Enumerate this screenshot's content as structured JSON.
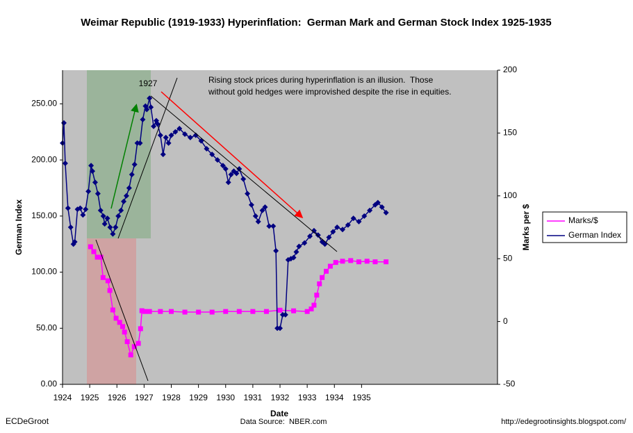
{
  "chart_data": {
    "type": "line",
    "title": "Weimar Republic (1919-1933) Hyperinflation:  German Mark and German Stock Index 1925-1935",
    "x_label": "Date",
    "y_label": "German Index",
    "y2_label": "Marks per $",
    "annotations": [
      "1927",
      "Rising stock prices during hyperinflation is an illusion.  Those",
      "without gold hedges were improvished despite the rise in equities."
    ],
    "footer": [
      "ECDeGroot",
      "Data Source:  NBER.com",
      "http://edegrootinsights.blogspot.com/"
    ],
    "xlim": [
      1924,
      1940
    ],
    "xticks": [
      1924,
      1925,
      1926,
      1927,
      1928,
      1929,
      1930,
      1931,
      1932,
      1933,
      1934,
      1935
    ],
    "ylim": [
      0,
      280
    ],
    "yticks": [
      {
        "value": 0,
        "label": "0.00"
      },
      {
        "value": 50,
        "label": "50.00"
      },
      {
        "value": 100,
        "label": "100.00"
      },
      {
        "value": 150,
        "label": "150.00"
      },
      {
        "value": 200,
        "label": "200.00"
      },
      {
        "value": 250,
        "label": "250.00"
      }
    ],
    "y2lim": [
      -50,
      200
    ],
    "y2ticks": [
      -50,
      0,
      50,
      100,
      150,
      200
    ],
    "legend": "right",
    "background": "#c0c0c0",
    "series": [
      {
        "name": "Marks/$",
        "color": "#ff00ff",
        "axis": "y2",
        "x": [
          1925.03,
          1925.15,
          1925.28,
          1925.41,
          1925.49,
          1925.67,
          1925.74,
          1925.85,
          1925.97,
          1926.1,
          1926.21,
          1926.28,
          1926.38,
          1926.51,
          1926.64,
          1926.79,
          1926.87,
          1926.92,
          1927.03,
          1927.2,
          1927.6,
          1928.0,
          1928.5,
          1929.0,
          1929.5,
          1930.0,
          1930.5,
          1931.0,
          1931.5,
          1932.0,
          1932.5,
          1933.0,
          1933.15,
          1933.25,
          1933.35,
          1933.45,
          1933.55,
          1933.7,
          1933.85,
          1934.05,
          1934.3,
          1934.6,
          1934.9,
          1935.2,
          1935.5,
          1935.9
        ],
        "values": [
          59.5,
          55.6,
          51.2,
          51.2,
          35,
          32.4,
          24.7,
          9.2,
          2.6,
          -0.7,
          -4,
          -8.4,
          -16,
          -26.6,
          -20,
          -17.4,
          -5.7,
          8.6,
          8,
          8,
          8,
          8,
          7.5,
          7.5,
          7.5,
          8,
          8,
          8,
          8,
          9,
          8.5,
          8,
          10,
          13,
          21,
          30,
          35,
          40,
          44,
          47,
          48,
          48.5,
          47.5,
          48,
          47.5,
          47.5
        ]
      },
      {
        "name": "German Index",
        "color": "#000080",
        "axis": "y",
        "x": [
          1924.0,
          1924.05,
          1924.1,
          1924.2,
          1924.3,
          1924.4,
          1924.45,
          1924.55,
          1924.65,
          1924.75,
          1924.85,
          1924.95,
          1925.05,
          1925.1,
          1925.2,
          1925.3,
          1925.4,
          1925.5,
          1925.55,
          1925.65,
          1925.75,
          1925.85,
          1925.95,
          1926.05,
          1926.15,
          1926.25,
          1926.35,
          1926.45,
          1926.55,
          1926.65,
          1926.75,
          1926.85,
          1926.95,
          1927.05,
          1927.1,
          1927.2,
          1927.25,
          1927.35,
          1927.45,
          1927.5,
          1927.6,
          1927.7,
          1927.8,
          1927.9,
          1928.0,
          1928.15,
          1928.3,
          1928.5,
          1928.7,
          1928.9,
          1929.1,
          1929.3,
          1929.5,
          1929.7,
          1929.9,
          1930.0,
          1930.1,
          1930.2,
          1930.3,
          1930.4,
          1930.5,
          1930.65,
          1930.8,
          1930.95,
          1931.1,
          1931.2,
          1931.35,
          1931.45,
          1931.6,
          1931.75,
          1931.85,
          1931.9,
          1932.0,
          1932.1,
          1932.2,
          1932.3,
          1932.4,
          1932.5,
          1932.6,
          1932.7,
          1932.9,
          1933.1,
          1933.25,
          1933.4,
          1933.55,
          1933.65,
          1933.8,
          1933.95,
          1934.1,
          1934.3,
          1934.5,
          1934.7,
          1934.9,
          1935.1,
          1935.3,
          1935.5,
          1935.6,
          1935.75,
          1935.9
        ],
        "values": [
          215,
          233,
          197,
          157,
          140,
          125,
          127,
          156,
          157,
          151,
          156,
          172,
          195,
          190,
          180,
          170,
          155,
          150,
          143,
          148,
          140,
          134,
          140,
          150,
          155,
          163,
          168,
          175,
          187,
          196,
          215,
          215,
          236,
          248,
          245,
          255,
          247,
          230,
          235,
          232,
          222,
          205,
          220,
          215,
          222,
          225,
          228,
          223,
          220,
          222,
          217,
          210,
          205,
          200,
          195,
          192,
          180,
          187,
          190,
          188,
          192,
          183,
          170,
          160,
          150,
          145,
          155,
          158,
          141,
          141,
          119,
          50,
          50,
          62,
          62,
          111,
          112,
          113,
          118,
          123,
          126,
          132,
          137,
          133,
          127,
          125,
          131,
          136,
          140,
          138,
          142,
          148,
          145,
          150,
          155,
          160,
          162,
          158,
          153
        ]
      }
    ]
  }
}
